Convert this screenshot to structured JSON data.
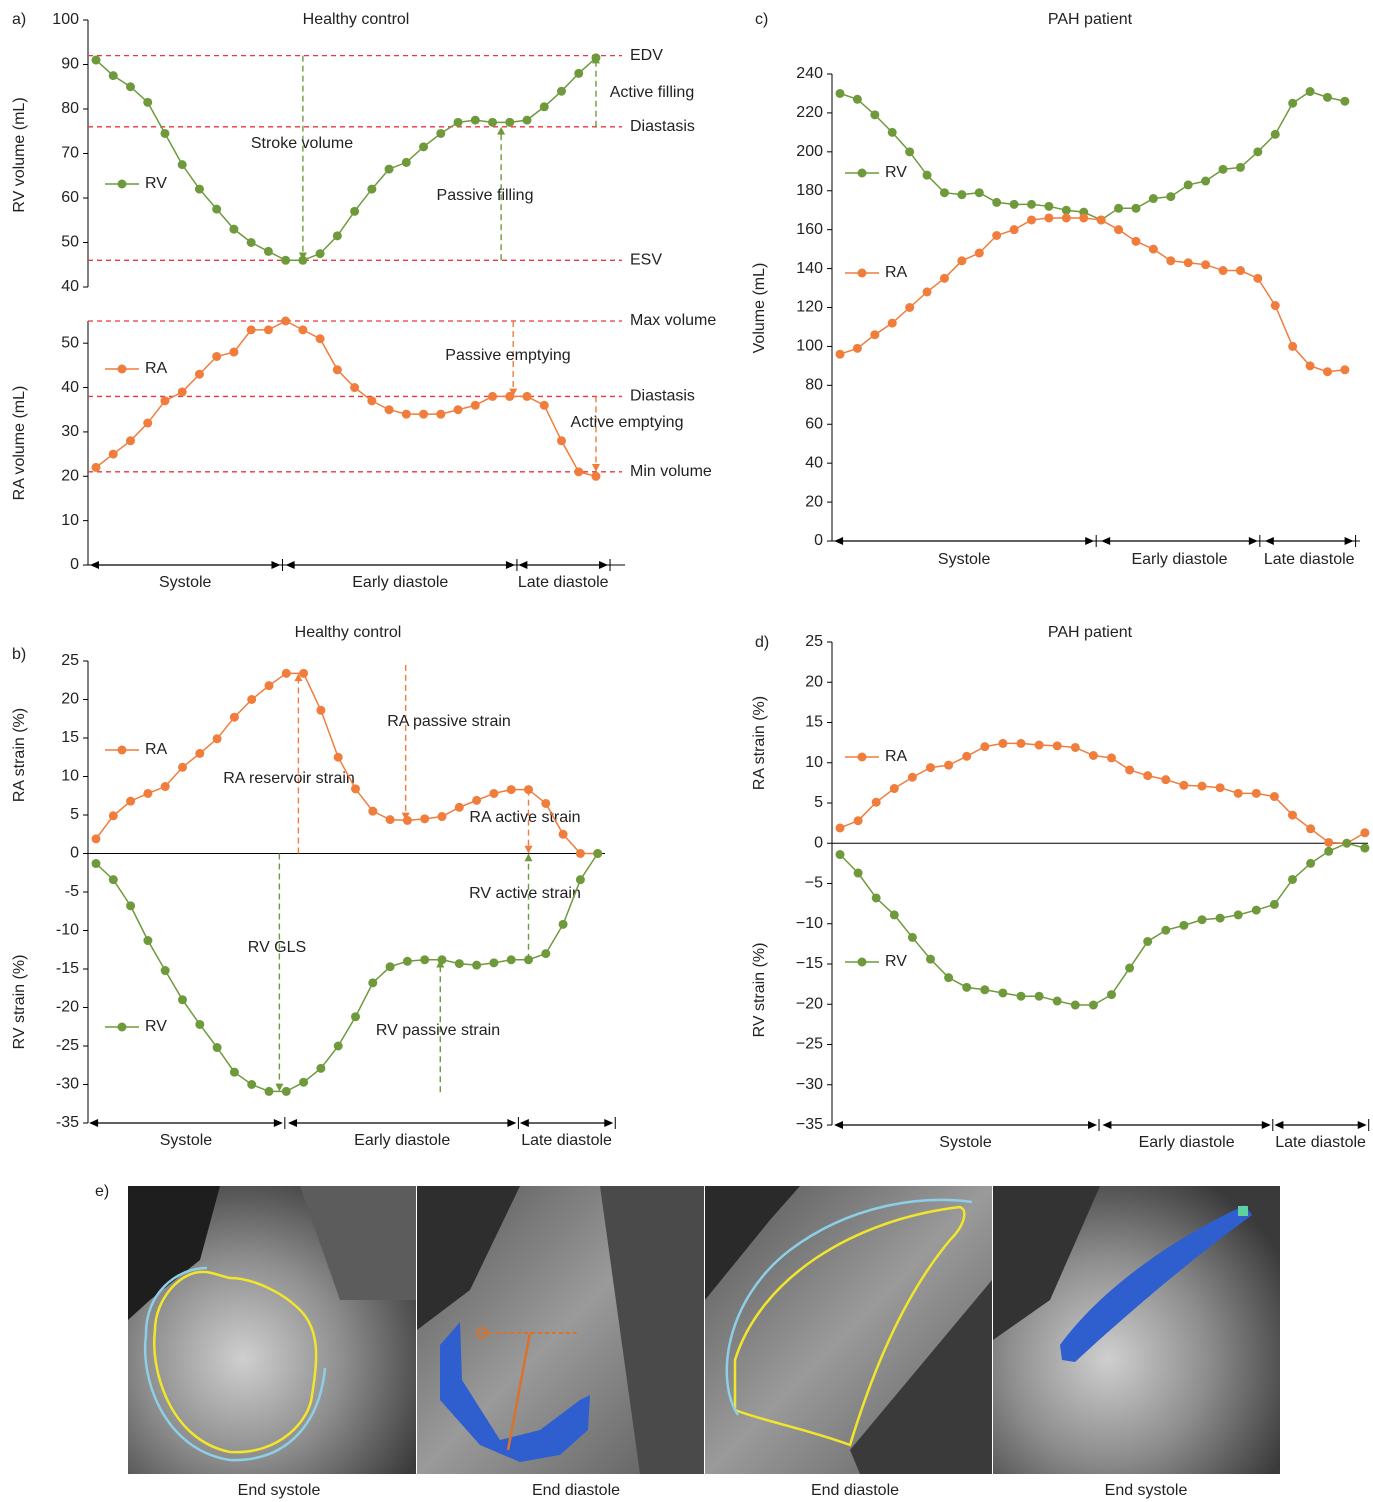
{
  "chart_data": [
    {
      "type": "line",
      "label": "a)",
      "title": "Healthy control",
      "ylabels": [
        "RV volume (mL)"
      ],
      "ylim": [
        40,
        100
      ],
      "yticks": [
        40,
        50,
        60,
        70,
        80,
        90,
        100
      ],
      "series": [
        {
          "name": "RV",
          "color": "#6f9a3c",
          "values": [
            91,
            87.5,
            85,
            81.5,
            74.5,
            67.5,
            62,
            57.5,
            53,
            50,
            48,
            46,
            46,
            47.5,
            51.5,
            57,
            62,
            66.5,
            68,
            71.5,
            74.5,
            77,
            77.5,
            77,
            77,
            77.5,
            80.5,
            84,
            88,
            91.5
          ]
        }
      ],
      "reference_lines": [
        {
          "label": "EDV",
          "value": 92
        },
        {
          "label": "Diastasis",
          "value": 76
        },
        {
          "label": "ESV",
          "value": 46
        }
      ],
      "arrows": [
        {
          "label": "Stroke volume",
          "x": 12,
          "from": 92,
          "to": 46,
          "color": "#6f9a3c"
        },
        {
          "label": "Passive filling",
          "x": 23.5,
          "from": 46,
          "to": 76,
          "color": "#6f9a3c"
        },
        {
          "label": "Active filling",
          "x": 29,
          "from": 76,
          "to": 92,
          "color": "#6f9a3c"
        }
      ]
    },
    {
      "type": "line",
      "ylabels": [
        "RA volume (mL)"
      ],
      "ylim": [
        0,
        55
      ],
      "yticks": [
        0,
        10,
        20,
        30,
        40,
        50
      ],
      "series": [
        {
          "name": "RA",
          "color": "#f07d3c",
          "values": [
            22,
            25,
            28,
            32,
            37,
            39,
            43,
            47,
            48,
            53,
            53,
            55,
            53,
            51,
            44,
            40,
            37,
            35,
            34,
            34,
            34,
            35,
            36,
            38,
            38,
            38,
            36,
            28,
            21,
            20
          ]
        }
      ],
      "reference_lines": [
        {
          "label": "Max volume",
          "value": 55
        },
        {
          "label": "Diastasis",
          "value": 38
        },
        {
          "label": "Min volume",
          "value": 21
        }
      ],
      "arrows": [
        {
          "label": "Passive emptying",
          "x": 24.2,
          "from": 55,
          "to": 38,
          "color": "#f07d3c"
        },
        {
          "label": "Active emptying",
          "x": 29,
          "from": 38,
          "to": 21,
          "color": "#f07d3c"
        }
      ],
      "phases": [
        {
          "label": "Systole",
          "start": -0.35,
          "end": 10.7
        },
        {
          "label": "Early diastole",
          "start": 11,
          "end": 24.3
        },
        {
          "label": "Late diastole",
          "start": 24.5,
          "end": 29.7
        }
      ]
    },
    {
      "type": "line",
      "label": "b)",
      "title": "Healthy control",
      "ylabels": [
        "RA strain (%)",
        "RV strain (%)"
      ],
      "ylim": [
        -35,
        25
      ],
      "yticks": [
        -35,
        -30,
        -25,
        -20,
        -15,
        -10,
        -5,
        0,
        5,
        10,
        15,
        20,
        25
      ],
      "series": [
        {
          "name": "RA",
          "color": "#f07d3c",
          "values": [
            1.9,
            4.9,
            6.8,
            7.8,
            8.7,
            11.2,
            13,
            14.9,
            17.7,
            20,
            21.8,
            23.4,
            23.4,
            18.6,
            12.5,
            8.4,
            5.5,
            4.4,
            4.3,
            4.5,
            4.8,
            6,
            6.9,
            7.8,
            8.3,
            8.3,
            6.5,
            2.5,
            0,
            0
          ]
        },
        {
          "name": "RV",
          "color": "#6f9a3c",
          "values": [
            -1.3,
            -3.4,
            -6.8,
            -11.3,
            -15.2,
            -19,
            -22.2,
            -25.2,
            -28.4,
            -30,
            -30.9,
            -30.9,
            -29.7,
            -27.9,
            -25,
            -21.2,
            -16.8,
            -14.7,
            -14,
            -13.8,
            -13.8,
            -14.3,
            -14.5,
            -14.2,
            -13.8,
            -13.8,
            -13,
            -9.2,
            -3.4,
            0
          ]
        }
      ],
      "arrows": [
        {
          "label": "RA reservoir strain",
          "x": 11.7,
          "from": 0,
          "to": 23.4,
          "color": "#f07d3c"
        },
        {
          "label": "RA passive strain",
          "x": 17.9,
          "from": 24.5,
          "to": 4.3,
          "color": "#f07d3c"
        },
        {
          "label": "RA active strain",
          "x": 25,
          "from": 8.3,
          "to": 0,
          "color": "#f07d3c"
        },
        {
          "label": "RV active strain",
          "x": 25,
          "from": -13.8,
          "to": 0,
          "color": "#6f9a3c"
        },
        {
          "label": "RV GLS",
          "x": 10.6,
          "from": 0,
          "to": -30.9,
          "color": "#6f9a3c"
        },
        {
          "label": "RV passive strain",
          "x": 19.9,
          "from": -31,
          "to": -13.8,
          "color": "#6f9a3c"
        }
      ],
      "phases": [
        {
          "label": "Systole",
          "start": -0.4,
          "end": 10.8
        },
        {
          "label": "Early diastole",
          "start": 11.1,
          "end": 24.3
        },
        {
          "label": "Late diastole",
          "start": 24.5,
          "end": 29.9
        }
      ]
    },
    {
      "type": "line",
      "label": "c)",
      "title": "PAH patient",
      "ylabels": [
        "Volume (mL)"
      ],
      "ylim": [
        0,
        240
      ],
      "yticks": [
        0,
        20,
        40,
        60,
        80,
        100,
        120,
        140,
        160,
        180,
        200,
        220,
        240
      ],
      "series": [
        {
          "name": "RV",
          "color": "#6f9a3c",
          "values": [
            230,
            227,
            219,
            210,
            200,
            188,
            179,
            178,
            179,
            174,
            173,
            173,
            172,
            170,
            169,
            165,
            171,
            171,
            176,
            177,
            183,
            185,
            191,
            192,
            200,
            209,
            225,
            231,
            228,
            226
          ]
        },
        {
          "name": "RA",
          "color": "#f07d3c",
          "values": [
            96,
            99,
            106,
            112,
            120,
            128,
            135,
            144,
            148,
            157,
            160,
            165,
            166,
            166,
            166,
            165,
            160,
            154,
            150,
            144,
            143,
            142,
            139,
            139,
            135,
            121,
            100,
            90,
            87,
            88
          ]
        }
      ],
      "phases": [
        {
          "label": "Systole",
          "start": -0.34,
          "end": 14.6
        },
        {
          "label": "Early diastole",
          "start": 15,
          "end": 24
        },
        {
          "label": "Late diastole",
          "start": 24.4,
          "end": 29.5
        }
      ]
    },
    {
      "type": "line",
      "label": "d)",
      "title": "PAH patient",
      "ylabels": [
        "RA strain (%)",
        "RV strain (%)"
      ],
      "ylim": [
        -35,
        25
      ],
      "yticks": [
        {
          "value": -35,
          "label": "−35"
        },
        {
          "value": -30,
          "label": "−30"
        },
        {
          "value": -25,
          "label": "−25"
        },
        {
          "value": -20,
          "label": "−20"
        },
        {
          "value": -15,
          "label": "−15"
        },
        {
          "value": -10,
          "label": "−10"
        },
        {
          "value": -5,
          "label": "−5"
        },
        0,
        5,
        10,
        15,
        20,
        25
      ],
      "series": [
        {
          "name": "RA",
          "color": "#f07d3c",
          "values": [
            1.9,
            2.8,
            5.1,
            6.8,
            8.2,
            9.4,
            9.7,
            10.8,
            12,
            12.4,
            12.4,
            12.2,
            12.1,
            11.9,
            10.9,
            10.6,
            9.1,
            8.4,
            7.9,
            7.2,
            7.1,
            6.9,
            6.2,
            6.2,
            5.8,
            3.5,
            1.8,
            0.1,
            0,
            1.3
          ]
        },
        {
          "name": "RV",
          "color": "#6f9a3c",
          "values": [
            -1.4,
            -3.7,
            -6.8,
            -8.9,
            -11.7,
            -14.4,
            -16.7,
            -17.9,
            -18.2,
            -18.6,
            -19,
            -19,
            -19.6,
            -20.1,
            -20.1,
            -18.8,
            -15.5,
            -12.2,
            -10.8,
            -10.2,
            -9.5,
            -9.3,
            -8.9,
            -8.3,
            -7.6,
            -4.5,
            -2.5,
            -1,
            0,
            -0.6
          ]
        }
      ],
      "phases": [
        {
          "label": "Systole",
          "start": -0.33,
          "end": 14.2
        },
        {
          "label": "Early diastole",
          "start": 14.5,
          "end": 23.8
        },
        {
          "label": "Late diastole",
          "start": 24,
          "end": 29.1
        }
      ]
    }
  ],
  "images": {
    "label": "e)",
    "captions": [
      "End systole",
      "End diastole",
      "End diastole",
      "End systole"
    ]
  }
}
